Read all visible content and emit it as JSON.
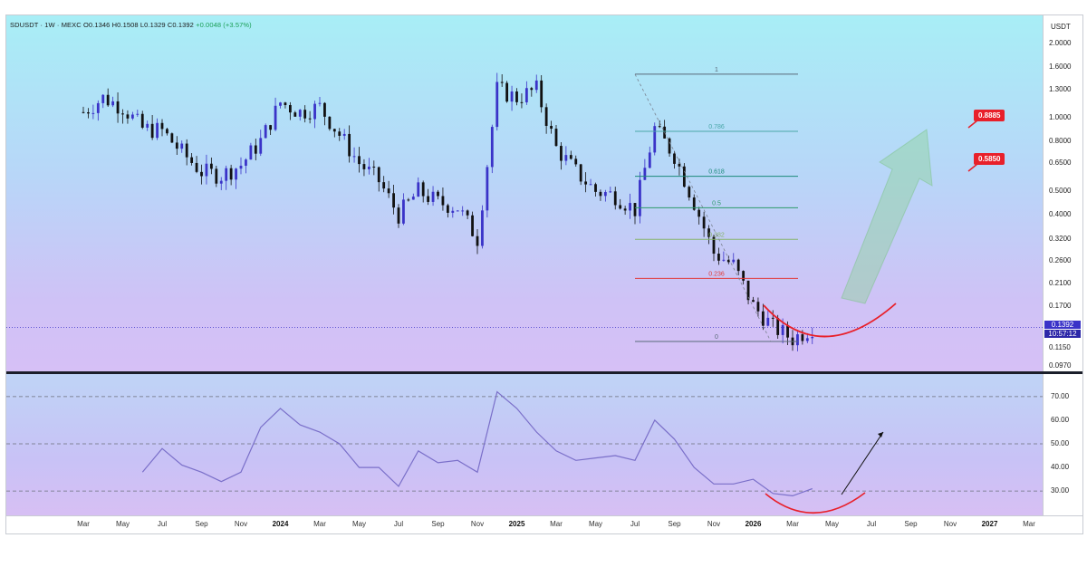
{
  "header": {
    "symbol": "SDUSDT",
    "interval": "1W",
    "exchange": "MEXC",
    "ohlc": "O0.1346 H0.1508 L0.1329 C0.1392",
    "change": "+0.0048 (+3.57%)"
  },
  "price_axis": {
    "currency": "USDT",
    "ticks": [
      "2.0000",
      "1.6000",
      "1.3000",
      "1.0000",
      "0.8000",
      "0.6500",
      "0.5000",
      "0.4000",
      "0.3200",
      "0.2600",
      "0.2100",
      "0.1700",
      "0.1150",
      "0.0970"
    ],
    "last_price": "0.1392",
    "countdown": "10:57:12"
  },
  "rsi_axis": {
    "ticks": [
      "70.00",
      "60.00",
      "50.00",
      "40.00",
      "30.00"
    ]
  },
  "time_axis": {
    "labels": [
      "Mar",
      "May",
      "Jul",
      "Sep",
      "Nov",
      "2024",
      "Mar",
      "May",
      "Jul",
      "Sep",
      "Nov",
      "2025",
      "Mar",
      "May",
      "Jul",
      "Sep",
      "Nov",
      "2026",
      "Mar",
      "May",
      "Jul",
      "Sep",
      "Nov",
      "2027",
      "Mar"
    ],
    "bold": [
      "2024",
      "2025",
      "2026",
      "2027"
    ]
  },
  "fibonacci": {
    "levels": [
      "1",
      "0.786",
      "0.618",
      "0.5",
      "0.382",
      "0.236",
      "0"
    ],
    "colors": [
      "#5a6a7a",
      "#4aa7a9",
      "#1c8a7a",
      "#2c9a6a",
      "#86b36a",
      "#e03a3a",
      "#5a6a7a"
    ]
  },
  "targets": [
    "0.8885",
    "0.5850"
  ],
  "colors": {
    "bull": "#3a33c8",
    "bear": "#111111",
    "arc": "#e8202a",
    "rsi": "#7a6fc9",
    "arrow": "#8fd29a"
  },
  "chart_data": [
    {
      "type": "candlestick",
      "title": "SDUSDT · 1W · MEXC",
      "scale": "log",
      "ylim": [
        0.097,
        2.0
      ],
      "x_range": [
        "2023-03",
        "2027-03"
      ],
      "close_series": [
        {
          "date": "2023-03",
          "close": 1.05
        },
        {
          "date": "2023-04",
          "close": 1.2
        },
        {
          "date": "2023-05",
          "close": 1.1
        },
        {
          "date": "2023-06",
          "close": 0.9
        },
        {
          "date": "2023-07",
          "close": 0.88
        },
        {
          "date": "2023-08",
          "close": 0.72
        },
        {
          "date": "2023-09",
          "close": 0.6
        },
        {
          "date": "2023-10",
          "close": 0.58
        },
        {
          "date": "2023-11",
          "close": 0.64
        },
        {
          "date": "2023-12",
          "close": 0.8
        },
        {
          "date": "2024-01",
          "close": 1.15
        },
        {
          "date": "2024-02",
          "close": 1.05
        },
        {
          "date": "2024-03",
          "close": 1.1
        },
        {
          "date": "2024-04",
          "close": 0.85
        },
        {
          "date": "2024-05",
          "close": 0.65
        },
        {
          "date": "2024-06",
          "close": 0.55
        },
        {
          "date": "2024-07",
          "close": 0.4
        },
        {
          "date": "2024-08",
          "close": 0.5
        },
        {
          "date": "2024-09",
          "close": 0.45
        },
        {
          "date": "2024-10",
          "close": 0.43
        },
        {
          "date": "2024-11",
          "close": 0.32
        },
        {
          "date": "2024-12",
          "close": 1.3
        },
        {
          "date": "2025-01",
          "close": 1.2
        },
        {
          "date": "2025-02",
          "close": 1.3
        },
        {
          "date": "2025-03",
          "close": 0.75
        },
        {
          "date": "2025-04",
          "close": 0.6
        },
        {
          "date": "2025-05",
          "close": 0.5
        },
        {
          "date": "2025-06",
          "close": 0.48
        },
        {
          "date": "2025-07",
          "close": 0.42
        },
        {
          "date": "2025-08",
          "close": 0.9
        },
        {
          "date": "2025-09",
          "close": 0.7
        },
        {
          "date": "2025-10",
          "close": 0.45
        },
        {
          "date": "2025-11",
          "close": 0.28
        },
        {
          "date": "2025-12",
          "close": 0.25
        },
        {
          "date": "2026-01",
          "close": 0.17
        },
        {
          "date": "2026-02",
          "close": 0.14
        },
        {
          "date": "2026-03",
          "close": 0.125
        },
        {
          "date": "2026-04",
          "close": 0.1392
        }
      ]
    },
    {
      "type": "line",
      "title": "RSI",
      "ylim": [
        22,
        78
      ],
      "gridlines": [
        70,
        50,
        30
      ],
      "series": [
        {
          "values": [
            {
              "date": "2023-06",
              "y": 38
            },
            {
              "date": "2023-07",
              "y": 48
            },
            {
              "date": "2023-08",
              "y": 41
            },
            {
              "date": "2023-09",
              "y": 38
            },
            {
              "date": "2023-10",
              "y": 34
            },
            {
              "date": "2023-11",
              "y": 38
            },
            {
              "date": "2023-12",
              "y": 57
            },
            {
              "date": "2024-01",
              "y": 65
            },
            {
              "date": "2024-02",
              "y": 58
            },
            {
              "date": "2024-03",
              "y": 55
            },
            {
              "date": "2024-04",
              "y": 50
            },
            {
              "date": "2024-05",
              "y": 40
            },
            {
              "date": "2024-06",
              "y": 40
            },
            {
              "date": "2024-07",
              "y": 32
            },
            {
              "date": "2024-08",
              "y": 47
            },
            {
              "date": "2024-09",
              "y": 42
            },
            {
              "date": "2024-10",
              "y": 43
            },
            {
              "date": "2024-11",
              "y": 38
            },
            {
              "date": "2024-12",
              "y": 72
            },
            {
              "date": "2025-01",
              "y": 65
            },
            {
              "date": "2025-02",
              "y": 55
            },
            {
              "date": "2025-03",
              "y": 47
            },
            {
              "date": "2025-04",
              "y": 43
            },
            {
              "date": "2025-05",
              "y": 44
            },
            {
              "date": "2025-06",
              "y": 45
            },
            {
              "date": "2025-07",
              "y": 43
            },
            {
              "date": "2025-08",
              "y": 60
            },
            {
              "date": "2025-09",
              "y": 52
            },
            {
              "date": "2025-10",
              "y": 40
            },
            {
              "date": "2025-11",
              "y": 33
            },
            {
              "date": "2025-12",
              "y": 33
            },
            {
              "date": "2026-01",
              "y": 35
            },
            {
              "date": "2026-02",
              "y": 29
            },
            {
              "date": "2026-03",
              "y": 28
            },
            {
              "date": "2026-04",
              "y": 31
            }
          ]
        }
      ]
    }
  ]
}
